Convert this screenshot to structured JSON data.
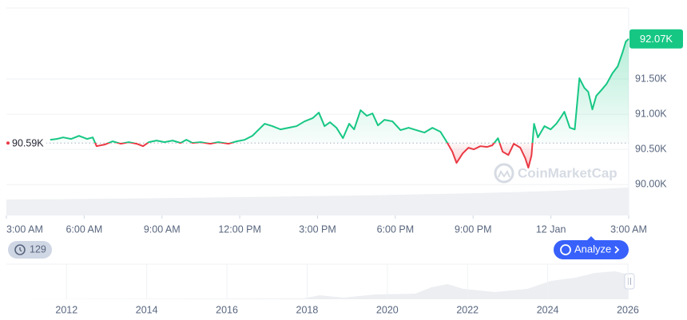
{
  "chart_data": [
    {
      "type": "line",
      "x": [
        1.69,
        1.94,
        2.19,
        2.5,
        2.8,
        3.11,
        3.33,
        3.48,
        3.79,
        4.1,
        4.41,
        4.72,
        5.02,
        5.27,
        5.49,
        5.79,
        6.1,
        6.41,
        6.72,
        6.94,
        7.18,
        7.49,
        7.86,
        8.17,
        8.57,
        8.88,
        9.19,
        9.49,
        9.71,
        9.96,
        10.26,
        10.57,
        10.88,
        11.19,
        11.5,
        11.81,
        12.05,
        12.27,
        12.48,
        12.73,
        12.98,
        13.22,
        13.41,
        13.66,
        13.9,
        14.12,
        14.33,
        14.58,
        14.89,
        15.2,
        15.51,
        15.81,
        16.12,
        16.43,
        16.74,
        16.99,
        17.2,
        17.36,
        17.6,
        17.82,
        18.03,
        18.28,
        18.53,
        18.74,
        18.96,
        19.14,
        19.36,
        19.57,
        19.82,
        20.01,
        20.13,
        20.25,
        20.35,
        20.5,
        20.75,
        20.99,
        21.21,
        21.36,
        21.52,
        21.73,
        21.92,
        22.1,
        22.29,
        22.44,
        22.6,
        22.75,
        22.97,
        23.15,
        23.37,
        23.58,
        23.77,
        23.89,
        24.0
      ],
      "values": [
        90.636,
        90.648,
        90.67,
        90.648,
        90.693,
        90.648,
        90.67,
        90.545,
        90.568,
        90.614,
        90.58,
        90.602,
        90.58,
        90.545,
        90.602,
        90.625,
        90.602,
        90.625,
        90.591,
        90.636,
        90.591,
        90.602,
        90.58,
        90.602,
        90.58,
        90.614,
        90.636,
        90.693,
        90.773,
        90.864,
        90.83,
        90.784,
        90.807,
        90.83,
        90.898,
        90.943,
        91.023,
        90.83,
        90.886,
        90.807,
        90.659,
        90.864,
        90.784,
        91.057,
        90.977,
        91.011,
        90.841,
        90.92,
        90.898,
        90.773,
        90.807,
        90.773,
        90.739,
        90.807,
        90.75,
        90.602,
        90.466,
        90.307,
        90.443,
        90.523,
        90.5,
        90.545,
        90.534,
        90.557,
        90.659,
        90.466,
        90.42,
        90.58,
        90.523,
        90.375,
        90.239,
        90.409,
        90.864,
        90.67,
        90.83,
        90.784,
        90.864,
        90.943,
        91.034,
        90.807,
        90.784,
        91.511,
        91.375,
        91.318,
        91.068,
        91.261,
        91.352,
        91.432,
        91.58,
        91.682,
        91.886,
        92.034,
        92.07
      ],
      "colors": {
        "up": "#16c784",
        "down": "#ea3943"
      },
      "xlim": [
        0,
        24
      ],
      "xticks": [
        {
          "value": 0,
          "label": "3:00 AM"
        },
        {
          "value": 3,
          "label": "6:00 AM"
        },
        {
          "value": 6,
          "label": "9:00 AM"
        },
        {
          "value": 9,
          "label": "12:00 PM"
        },
        {
          "value": 12,
          "label": "3:00 PM"
        },
        {
          "value": 15,
          "label": "6:00 PM"
        },
        {
          "value": 18,
          "label": "9:00 PM"
        },
        {
          "value": 21,
          "label": "12 Jan"
        },
        {
          "value": 24,
          "label": "3:00 AM"
        }
      ],
      "ylim": [
        89.56,
        92.51
      ],
      "yticks": [
        {
          "value": 90,
          "label": "90.00K"
        },
        {
          "value": 90.5,
          "label": "90.50K"
        },
        {
          "value": 91,
          "label": "91.00K"
        },
        {
          "value": 91.5,
          "label": "91.50K"
        }
      ],
      "grid": true,
      "baseline": {
        "value": 90.59,
        "label": "90.59K"
      },
      "current": {
        "value": 92.07,
        "label": "92.07K"
      },
      "watermark": "CoinMarketCap"
    },
    {
      "type": "area",
      "xlim": [
        2010.5,
        2026.02
      ],
      "xticks": [
        2012,
        2014,
        2016,
        2018,
        2020,
        2022,
        2024,
        2026
      ]
    }
  ],
  "controls": {
    "history_count": "129",
    "analyze": "Analyze"
  }
}
